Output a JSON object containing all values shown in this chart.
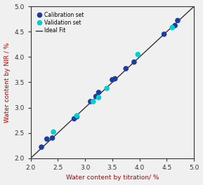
{
  "calibration_x": [
    2.2,
    2.3,
    2.4,
    2.8,
    2.85,
    3.1,
    3.2,
    3.25,
    3.5,
    3.55,
    3.75,
    3.9,
    4.45,
    4.65,
    4.7
  ],
  "calibration_y": [
    2.22,
    2.38,
    2.4,
    2.78,
    2.82,
    3.12,
    3.22,
    3.3,
    3.55,
    3.57,
    3.77,
    3.9,
    4.45,
    4.62,
    4.72
  ],
  "validation_x": [
    2.42,
    2.85,
    3.15,
    3.25,
    3.4,
    3.97,
    4.6
  ],
  "validation_y": [
    2.52,
    2.84,
    3.12,
    3.2,
    3.38,
    4.05,
    4.58
  ],
  "cal_color": "#1b3e9e",
  "val_color": "#00d0d0",
  "line_color": "#333333",
  "xlabel": "Water content by titration/ %",
  "ylabel": "Water content by NIR / %",
  "xlim": [
    2.0,
    5.0
  ],
  "ylim": [
    2.0,
    5.0
  ],
  "xticks": [
    2.0,
    2.5,
    3.0,
    3.5,
    4.0,
    4.5,
    5.0
  ],
  "yticks": [
    2.0,
    2.5,
    3.0,
    3.5,
    4.0,
    4.5,
    5.0
  ],
  "legend_labels": [
    "Calibration set",
    "Validation set",
    "Ideal Fit"
  ],
  "xlabel_color": "#c00000",
  "ylabel_color": "#c00000",
  "marker_size": 5.5,
  "figsize": [
    2.89,
    2.64
  ],
  "dpi": 100
}
